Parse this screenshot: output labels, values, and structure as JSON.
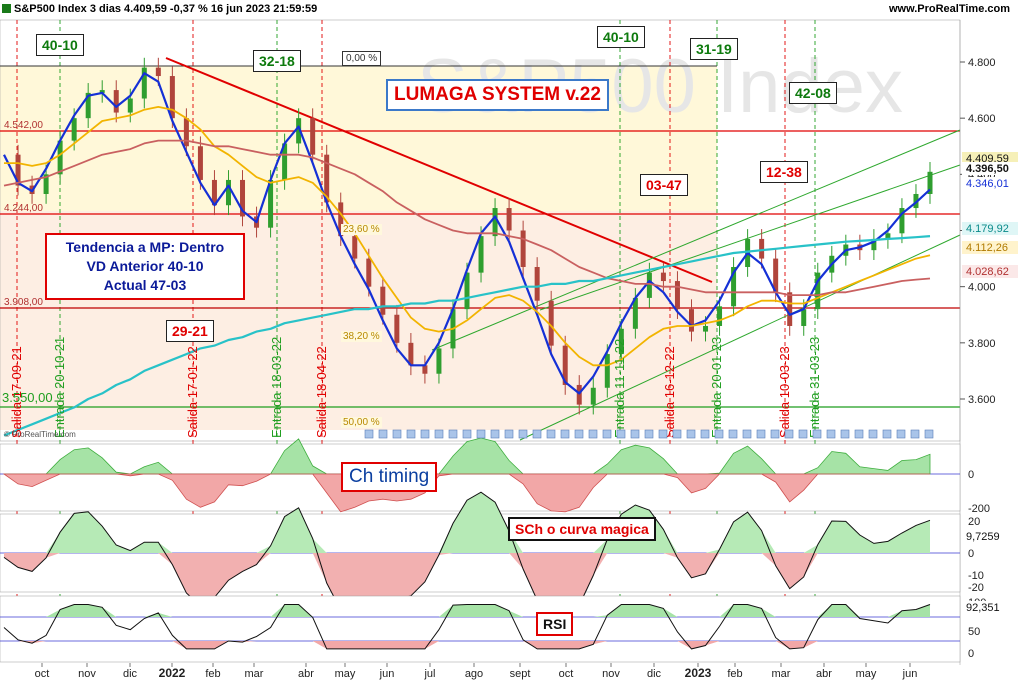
{
  "header": {
    "title": "S&P500 Index 3 dias 4.409,59 -0,37 % 16 jun 2023 21:59:59",
    "site": "www.ProRealTime.com",
    "watermark": "S&P500 Index",
    "credit": "© ProRealTime.com"
  },
  "annotations": {
    "lumaga": "LUMAGA SYSTEM v.22",
    "tendencia": [
      "Tendencia a MP: Dentro",
      "VD Anterior 40-10",
      "Actual 47-03"
    ],
    "ch_timing": "Ch timing",
    "sch": "SCh o curva magica",
    "rsi": "RSI",
    "counts": [
      {
        "text": "40-10",
        "color": "green"
      },
      {
        "text": "32-18",
        "color": "green"
      },
      {
        "text": "40-10",
        "color": "green"
      },
      {
        "text": "31-19",
        "color": "green"
      },
      {
        "text": "42-08",
        "color": "green"
      },
      {
        "text": "29-21",
        "color": "red"
      },
      {
        "text": "03-47",
        "color": "red"
      },
      {
        "text": "12-38",
        "color": "red"
      }
    ],
    "fib": [
      "0,00 %",
      "23,60 %",
      "38,20 %",
      "50,00 %"
    ],
    "levels": [
      "4.542,00",
      "4.244,00",
      "3.908,00",
      "3.550,00"
    ]
  },
  "signals": [
    {
      "text": "Salida 17-09-21",
      "type": "salida"
    },
    {
      "text": "Entrada 20-10-21",
      "type": "entrada"
    },
    {
      "text": "Salida 17-01-22",
      "type": "salida"
    },
    {
      "text": "Entrada 18-03-22",
      "type": "entrada"
    },
    {
      "text": "Salida 18-04-22",
      "type": "salida"
    },
    {
      "text": "Entrada 11-11-22",
      "type": "entrada"
    },
    {
      "text": "Salida 16-12-22",
      "type": "salida"
    },
    {
      "text": "Entrada 20-01-23",
      "type": "entrada"
    },
    {
      "text": "Salida 10-03-23",
      "type": "salida"
    },
    {
      "text": "Entrada 31-03-23",
      "type": "entrada"
    }
  ],
  "price_tags": {
    "close": "4.409,59",
    "last": "4.396,50",
    "ma_fast": "4.346,01",
    "ma_teal": "4.179,92",
    "ma_gold": "4.112,26",
    "ma_slow": "4.028,62"
  },
  "indicator_tags": {
    "sch_value": "9,7259",
    "rsi_value": "92,351"
  },
  "chart_data": {
    "type": "candlestick",
    "title": "S&P500 Index 3 dias",
    "x_ticks": [
      "oct",
      "nov",
      "dic",
      "2022",
      "feb",
      "mar",
      "abr",
      "may",
      "jun",
      "jul",
      "ago",
      "sept",
      "oct",
      "nov",
      "dic",
      "2023",
      "feb",
      "mar",
      "abr",
      "may",
      "jun"
    ],
    "y_ticks": [
      "4.800",
      "4.600",
      "4.400",
      "4.200",
      "4.000",
      "3.800",
      "3.600"
    ],
    "y_range": [
      3490,
      4950
    ],
    "series": [
      {
        "name": "Precio",
        "values": [
          4470,
          4360,
          4330,
          4400,
          4520,
          4600,
          4690,
          4700,
          4620,
          4670,
          4780,
          4750,
          4600,
          4500,
          4380,
          4290,
          4380,
          4250,
          4210,
          4380,
          4510,
          4600,
          4470,
          4300,
          4180,
          4100,
          4000,
          3900,
          3800,
          3720,
          3690,
          3780,
          3920,
          4050,
          4180,
          4280,
          4200,
          4070,
          3950,
          3790,
          3650,
          3580,
          3640,
          3760,
          3850,
          3960,
          4050,
          4020,
          3920,
          3840,
          3860,
          3930,
          4070,
          4170,
          4100,
          3980,
          3860,
          3920,
          4050,
          4110,
          4150,
          4130,
          4170,
          4190,
          4280,
          4330,
          4409
        ]
      },
      {
        "name": "MM rapida",
        "values": [
          4470,
          4370,
          4340,
          4420,
          4520,
          4610,
          4680,
          4690,
          4640,
          4680,
          4760,
          4730,
          4590,
          4480,
          4370,
          4290,
          4360,
          4270,
          4230,
          4380,
          4510,
          4570,
          4440,
          4300,
          4180,
          4080,
          3990,
          3880,
          3780,
          3720,
          3720,
          3800,
          3920,
          4060,
          4190,
          4250,
          4160,
          4030,
          3900,
          3760,
          3660,
          3620,
          3680,
          3770,
          3870,
          3960,
          4020,
          3980,
          3910,
          3860,
          3880,
          3950,
          4050,
          4120,
          4080,
          3980,
          3900,
          3920,
          4020,
          4080,
          4130,
          4140,
          4160,
          4200,
          4260,
          4300,
          4346
        ]
      },
      {
        "name": "MM 40",
        "values": [
          4440,
          4440,
          4430,
          4440,
          4470,
          4510,
          4550,
          4590,
          4600,
          4610,
          4630,
          4640,
          4630,
          4600,
          4560,
          4500,
          4470,
          4430,
          4390,
          4370,
          4380,
          4390,
          4370,
          4320,
          4260,
          4190,
          4110,
          4030,
          3960,
          3890,
          3850,
          3840,
          3850,
          3880,
          3920,
          3960,
          3970,
          3950,
          3910,
          3860,
          3800,
          3750,
          3720,
          3720,
          3740,
          3780,
          3820,
          3850,
          3860,
          3860,
          3870,
          3880,
          3900,
          3930,
          3950,
          3950,
          3940,
          3940,
          3960,
          3980,
          4000,
          4020,
          4040,
          4060,
          4080,
          4100,
          4112
        ]
      },
      {
        "name": "MM 200",
        "values": [
          4360,
          4370,
          4380,
          4390,
          4410,
          4430,
          4450,
          4470,
          4480,
          4490,
          4510,
          4520,
          4520,
          4520,
          4510,
          4500,
          4500,
          4490,
          4480,
          4470,
          4470,
          4470,
          4460,
          4440,
          4420,
          4400,
          4370,
          4340,
          4300,
          4270,
          4240,
          4220,
          4200,
          4190,
          4190,
          4190,
          4180,
          4170,
          4150,
          4130,
          4100,
          4070,
          4050,
          4030,
          4020,
          4010,
          4010,
          4000,
          4000,
          3990,
          3980,
          3980,
          3980,
          3980,
          3980,
          3980,
          3970,
          3970,
          3970,
          3980,
          3980,
          3990,
          4000,
          4010,
          4020,
          4025,
          4029
        ]
      },
      {
        "name": "MM teal",
        "values": [
          3470,
          3490,
          3510,
          3530,
          3550,
          3570,
          3600,
          3620,
          3650,
          3670,
          3700,
          3720,
          3740,
          3760,
          3780,
          3790,
          3810,
          3820,
          3840,
          3850,
          3870,
          3880,
          3890,
          3900,
          3910,
          3920,
          3920,
          3930,
          3930,
          3940,
          3940,
          3950,
          3950,
          3960,
          3970,
          3980,
          3990,
          4000,
          4000,
          4010,
          4010,
          4020,
          4020,
          4030,
          4040,
          4050,
          4060,
          4070,
          4080,
          4090,
          4100,
          4110,
          4120,
          4125,
          4130,
          4135,
          4140,
          4145,
          4150,
          4155,
          4160,
          4163,
          4166,
          4170,
          4173,
          4176,
          4180
        ]
      }
    ],
    "panels": [
      {
        "name": "Ch timing",
        "y_ticks": [
          "0",
          "-200"
        ]
      },
      {
        "name": "SCh o curva magica",
        "y_ticks": [
          "20",
          "10",
          "0",
          "-10",
          "-20"
        ]
      },
      {
        "name": "RSI",
        "y_ticks": [
          "100",
          "50",
          "0"
        ]
      }
    ],
    "grid": false
  }
}
